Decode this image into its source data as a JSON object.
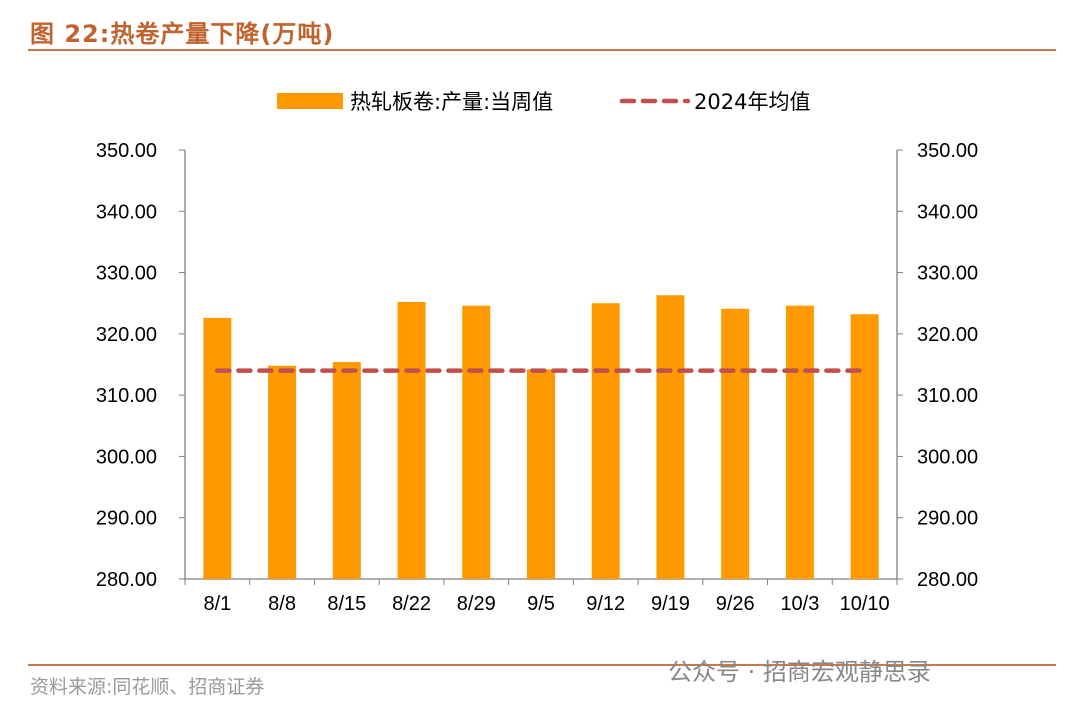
{
  "title": "图 22:热卷产量下降(万吨)",
  "footer": "资料来源:同花顺、招商证券",
  "watermark": "公众号 · 招商宏观静思录",
  "colors": {
    "bar": "#FF9900",
    "avg": "#C0504D",
    "title": "#C0632F"
  },
  "chart_data": {
    "type": "bar",
    "categories": [
      "8/1",
      "8/8",
      "8/15",
      "8/22",
      "8/29",
      "9/5",
      "9/12",
      "9/19",
      "9/26",
      "10/3",
      "10/10"
    ],
    "series": [
      {
        "name": "热轧板卷:产量:当周值",
        "type": "bar",
        "values": [
          322.6,
          314.8,
          315.4,
          325.2,
          324.6,
          314.2,
          325.0,
          326.3,
          324.1,
          324.6,
          323.2
        ]
      },
      {
        "name": "2024年均值",
        "type": "line-dashed",
        "values": [
          314.0,
          314.0,
          314.0,
          314.0,
          314.0,
          314.0,
          314.0,
          314.0,
          314.0,
          314.0,
          314.0
        ]
      }
    ],
    "ylim": [
      280,
      350
    ],
    "yticks": [
      "280.00",
      "290.00",
      "300.00",
      "310.00",
      "320.00",
      "330.00",
      "340.00",
      "350.00"
    ],
    "legend": "top-center",
    "grid": false
  }
}
